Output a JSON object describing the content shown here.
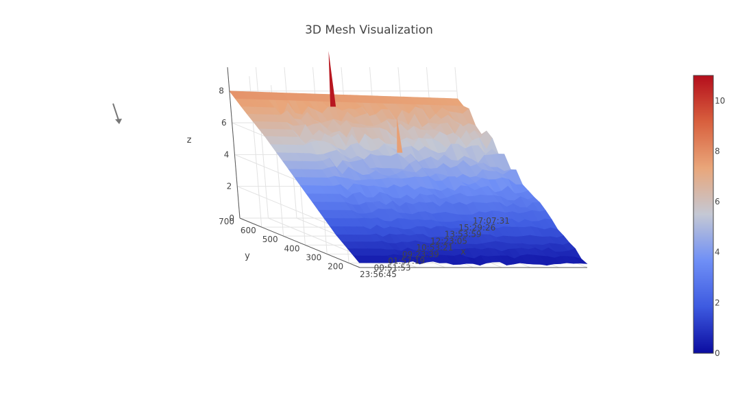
{
  "chart_data": {
    "type": "surface",
    "title": "3D Mesh Visualization",
    "axes": {
      "x": {
        "title": "x",
        "tick_labels": [
          "23:56:45",
          "00:51:53",
          "01:57:19",
          "09:23:39",
          "10:53:21",
          "12:23:05",
          "13:53:59",
          "15:29:26",
          "17:07:31"
        ]
      },
      "y": {
        "title": "y",
        "ticks": [
          200,
          300,
          400,
          500,
          600,
          700
        ]
      },
      "z": {
        "title": "z",
        "ticks": [
          0,
          2,
          4,
          6,
          8
        ],
        "range": [
          0,
          9.5
        ]
      }
    },
    "colorbar": {
      "ticks": [
        0,
        2,
        4,
        6,
        8,
        10
      ],
      "range": [
        0,
        11
      ],
      "colorscale": [
        "#0b0ca0",
        "#3d5ae0",
        "#6f8ff6",
        "#c4c8d4",
        "#e9a67a",
        "#d8603e",
        "#b40e1c"
      ]
    },
    "surface": {
      "y_values": [
        150,
        250,
        350,
        450,
        550,
        650,
        700
      ],
      "z_along_y": [
        0.3,
        1.5,
        3.0,
        4.5,
        6.0,
        7.3,
        8.0
      ],
      "spikes": [
        {
          "x_label": "12:23:05",
          "y": 650,
          "z": 10.8
        },
        {
          "x_label": "15:29:26",
          "y": 500,
          "z": 7.5
        }
      ]
    },
    "grid": true,
    "legend": "none"
  }
}
